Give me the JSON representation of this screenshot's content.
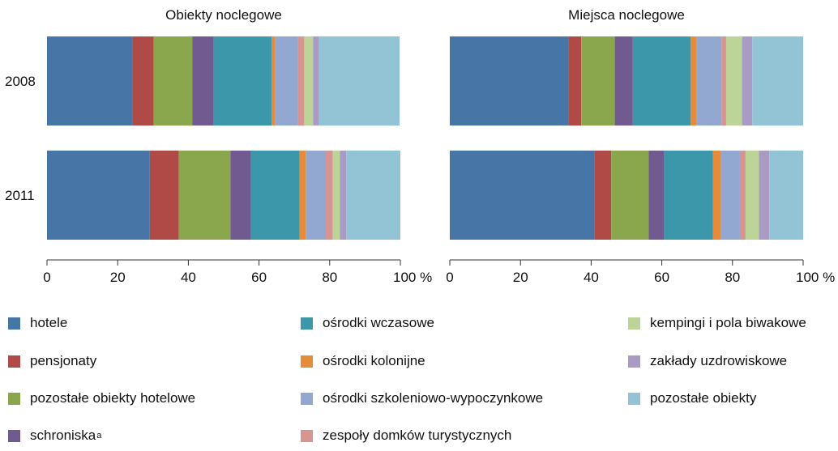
{
  "chart_data": {
    "type": "bar",
    "orientation": "horizontal",
    "stacked": true,
    "percent_unit": "%",
    "categories": [
      "2008",
      "2011"
    ],
    "xlim": [
      0,
      100
    ],
    "xticks": [
      0,
      20,
      40,
      60,
      80,
      100
    ],
    "grid": false,
    "legend_position": "bottom",
    "series": [
      {
        "name": "hotele",
        "color": "#4775a6"
      },
      {
        "name": "pensjonaty",
        "color": "#b04a46"
      },
      {
        "name": "pozostałe obiekty hotelowe",
        "color": "#8ba74e"
      },
      {
        "name": "schroniska",
        "superscript": "a",
        "color": "#715a8f"
      },
      {
        "name": "ośrodki wczasowe",
        "color": "#3b97a9"
      },
      {
        "name": "ośrodki kolonijne",
        "color": "#e58b3c"
      },
      {
        "name": "ośrodki szkoleniowo-wypoczynkowe",
        "color": "#93a8d0"
      },
      {
        "name": "zespoły domków turystycznych",
        "color": "#d69593"
      },
      {
        "name": "kempingi i pola biwakowe",
        "color": "#bcd497"
      },
      {
        "name": "zakłady uzdrowiskowe",
        "color": "#a99bc3"
      },
      {
        "name": "pozostałe obiekty",
        "color": "#92c4d5"
      }
    ],
    "panels": [
      {
        "title": "Obiekty noclegowe",
        "values": {
          "2008": [
            24.3,
            5.9,
            10.9,
            6.1,
            16.4,
            1.0,
            6.4,
            1.8,
            2.5,
            1.7,
            22.8
          ],
          "2011": [
            29.1,
            8.2,
            14.6,
            5.8,
            13.8,
            1.7,
            5.7,
            2.0,
            2.0,
            1.8,
            15.3
          ]
        }
      },
      {
        "title": "Miejsca noclegowe",
        "values": {
          "2008": [
            33.7,
            3.5,
            9.5,
            5.1,
            16.4,
            1.7,
            7.0,
            1.3,
            4.5,
            2.9,
            14.4
          ],
          "2011": [
            40.9,
            4.8,
            10.6,
            4.4,
            13.8,
            2.1,
            5.5,
            1.6,
            3.8,
            2.9,
            9.6
          ]
        }
      }
    ]
  }
}
